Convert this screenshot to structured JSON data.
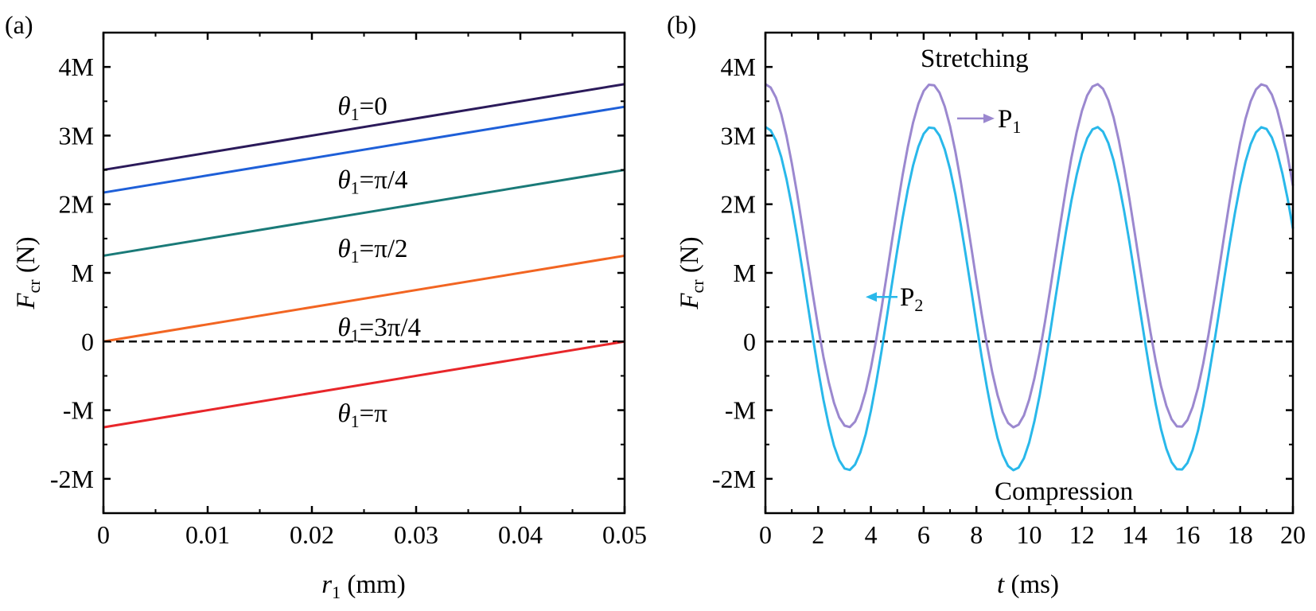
{
  "chart_data": [
    {
      "panel": "(a)",
      "type": "line",
      "title": "",
      "xlabel": "r",
      "xlabel_sub": "1",
      "xlabel_unit": " (mm)",
      "ylabel": "F",
      "ylabel_sub": "cr",
      "ylabel_unit": " (N)",
      "xlim": [
        0,
        0.05
      ],
      "ylim": [
        -2.5,
        4.5
      ],
      "xticks": [
        0,
        0.01,
        0.02,
        0.03,
        0.04,
        0.05
      ],
      "xtick_labels": [
        "0",
        "0.01",
        "0.02",
        "0.03",
        "0.04",
        "0.05"
      ],
      "yticks": [
        -2,
        -1,
        0,
        1,
        2,
        3,
        4
      ],
      "ytick_labels": [
        "-2M",
        "-M",
        "0",
        "M",
        "2M",
        "3M",
        "4M"
      ],
      "series": [
        {
          "name": "θ1=0",
          "label_main": "θ",
          "label_sub": "1",
          "label_rest": "=0",
          "color": "#2b1a5a",
          "x": [
            0,
            0.05
          ],
          "y": [
            2.5,
            3.75
          ],
          "label_at": [
            0.024,
            3.42
          ]
        },
        {
          "name": "θ1=π/4",
          "label_main": "θ",
          "label_sub": "1",
          "label_rest": "=π/4",
          "color": "#1e5fd8",
          "x": [
            0,
            0.05
          ],
          "y": [
            2.17,
            3.42
          ],
          "label_at": [
            0.024,
            2.35
          ]
        },
        {
          "name": "θ1=π/2",
          "label_main": "θ",
          "label_sub": "1",
          "label_rest": "=π/2",
          "color": "#1a7a78",
          "x": [
            0,
            0.05
          ],
          "y": [
            1.25,
            2.5
          ],
          "label_at": [
            0.024,
            1.35
          ]
        },
        {
          "name": "θ1=3π/4",
          "label_main": "θ",
          "label_sub": "1",
          "label_rest": "=3π/4",
          "color": "#f26522",
          "x": [
            0,
            0.05
          ],
          "y": [
            0,
            1.25
          ],
          "label_at": [
            0.024,
            0.2
          ]
        },
        {
          "name": "θ1=π",
          "label_main": "θ",
          "label_sub": "1",
          "label_rest": "=π",
          "color": "#e8262a",
          "x": [
            0,
            0.05
          ],
          "y": [
            -1.25,
            0
          ],
          "label_at": [
            0.024,
            -1.05
          ]
        }
      ],
      "reference_line": {
        "y": 0,
        "style": "dashed",
        "color": "#000000"
      }
    },
    {
      "panel": "(b)",
      "type": "line",
      "title": "",
      "xlabel": "t",
      "xlabel_unit": " (ms)",
      "ylabel": "F",
      "ylabel_sub": "cr",
      "ylabel_unit": " (N)",
      "xlim": [
        0,
        20
      ],
      "ylim": [
        -2.5,
        4.5
      ],
      "xticks": [
        0,
        2,
        4,
        6,
        8,
        10,
        12,
        14,
        16,
        18,
        20
      ],
      "xtick_labels": [
        "0",
        "2",
        "4",
        "6",
        "8",
        "10",
        "12",
        "14",
        "16",
        "18",
        "20"
      ],
      "yticks": [
        -2,
        -1,
        0,
        1,
        2,
        3,
        4
      ],
      "ytick_labels": [
        "-2M",
        "-M",
        "0",
        "M",
        "2M",
        "3M",
        "4M"
      ],
      "series": [
        {
          "name": "P1",
          "label_main": "P",
          "label_sub": "1",
          "color": "#9b88cf",
          "mean": 1.25,
          "amplitude": 2.5,
          "period_ms": 6.283,
          "x_range": [
            0,
            20
          ],
          "y_at_t0": 3.75,
          "max": 3.75,
          "min": -1.25
        },
        {
          "name": "P2",
          "label_main": "P",
          "label_sub": "2",
          "color": "#29b8ea",
          "mean": 0.625,
          "amplitude": 2.5,
          "period_ms": 6.283,
          "x_range": [
            0,
            20
          ],
          "y_at_t0": 3.125,
          "max": 3.125,
          "min": -1.875
        }
      ],
      "reference_line": {
        "y": 0,
        "style": "dashed",
        "color": "#000000"
      },
      "annotations": [
        "Stretching",
        "Compression"
      ]
    }
  ]
}
